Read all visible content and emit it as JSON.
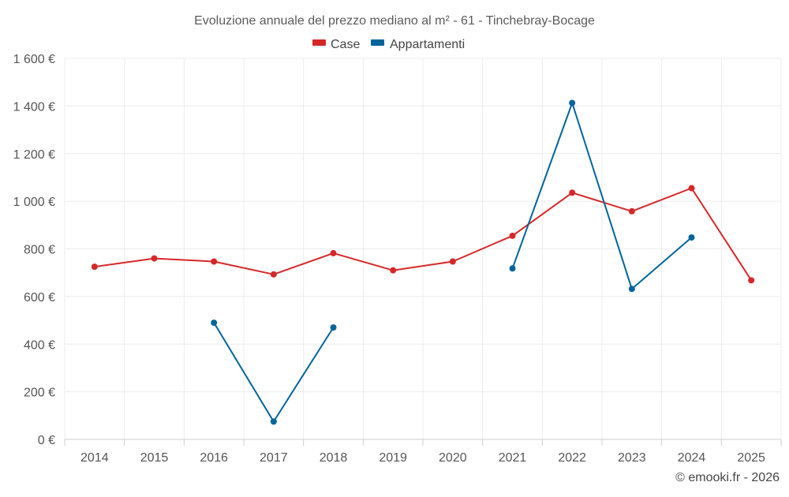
{
  "chart_data": {
    "type": "line",
    "title": "Evoluzione annuale del prezzo mediano al m² - 61 - Tinchebray-Bocage",
    "categories": [
      "2014",
      "2015",
      "2016",
      "2017",
      "2018",
      "2019",
      "2020",
      "2021",
      "2022",
      "2023",
      "2024",
      "2025"
    ],
    "ylim": [
      0,
      1600
    ],
    "yticks": [
      0,
      200,
      400,
      600,
      800,
      1000,
      1200,
      1400,
      1600
    ],
    "ytick_labels": [
      "0 €",
      "200 €",
      "400 €",
      "600 €",
      "800 €",
      "1 000 €",
      "1 200 €",
      "1 400 €",
      "1 600 €"
    ],
    "grid": true,
    "legend_position": "top-center",
    "series": [
      {
        "name": "Case",
        "color": "#d62728",
        "values": [
          725,
          760,
          747,
          693,
          782,
          710,
          747,
          855,
          1036,
          958,
          1055,
          668
        ]
      },
      {
        "name": "Appartamenti",
        "color": "#00649b",
        "values": [
          null,
          null,
          490,
          75,
          470,
          null,
          null,
          718,
          1413,
          632,
          848,
          null
        ]
      }
    ],
    "credit": "© emooki.fr - 2026"
  }
}
